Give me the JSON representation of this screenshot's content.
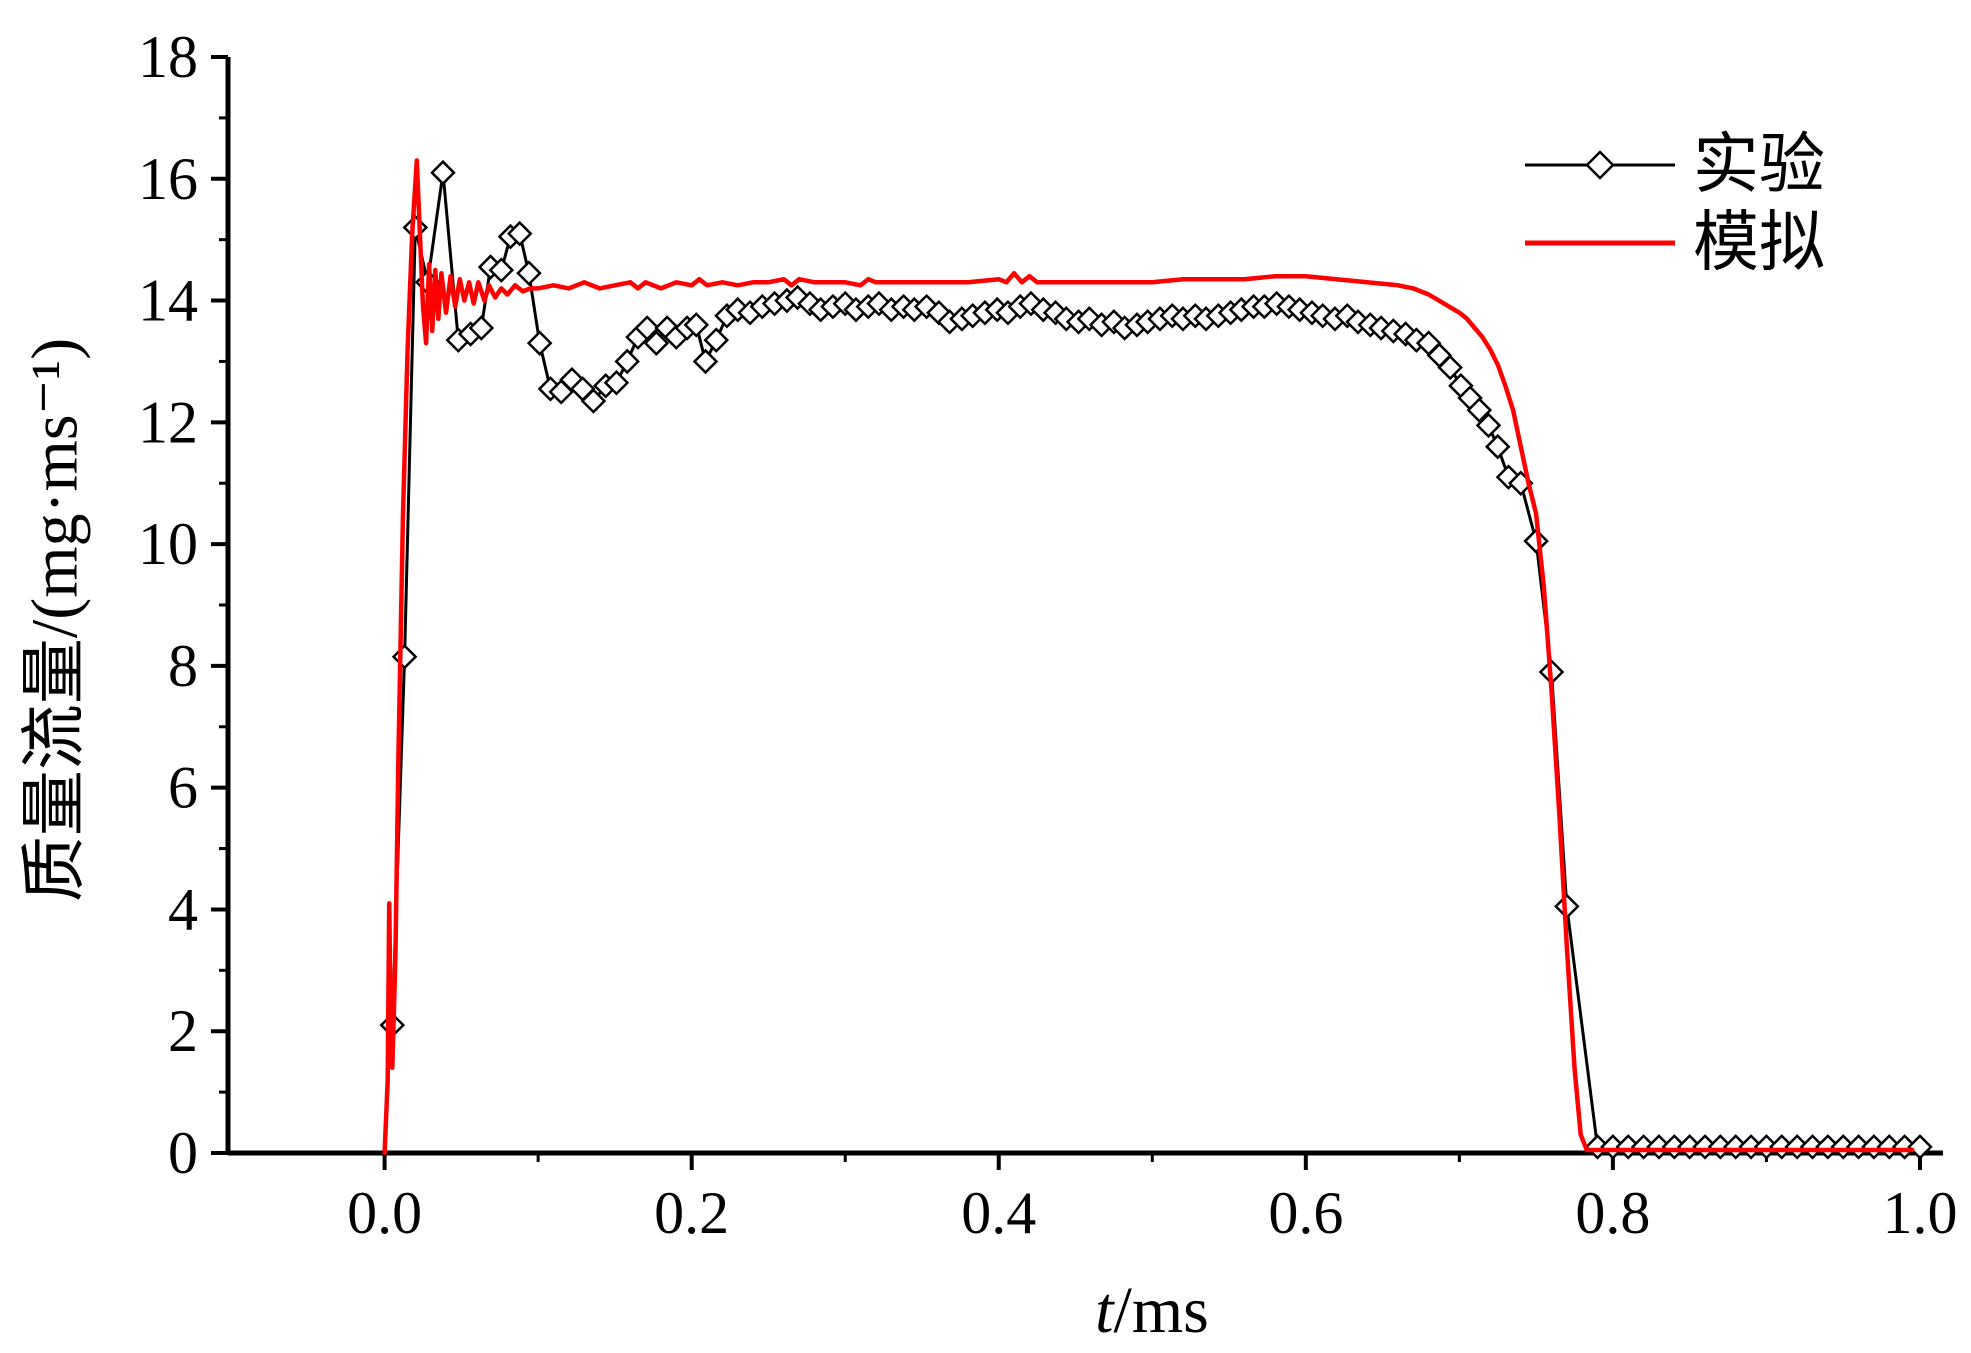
{
  "chart_data": {
    "type": "line",
    "title": "",
    "xlabel_italic": "t",
    "xlabel_rest": "/ms",
    "ylabel": "质量流量/(mg·ms⁻¹)",
    "xlim": [
      -0.102,
      1.015
    ],
    "ylim": [
      0,
      18
    ],
    "xtick_values": [
      0.0,
      0.2,
      0.4,
      0.6,
      0.8,
      1.0
    ],
    "xtick_labels": [
      "0.0",
      "0.2",
      "0.4",
      "0.6",
      "0.8",
      "1.0"
    ],
    "xtick_minor": [
      0.1,
      0.3,
      0.5,
      0.7,
      0.9
    ],
    "ytick_values": [
      0,
      2,
      4,
      6,
      8,
      10,
      12,
      14,
      16,
      18
    ],
    "ytick_labels": [
      "0",
      "2",
      "4",
      "6",
      "8",
      "10",
      "12",
      "14",
      "16",
      "18"
    ],
    "ytick_minor": [
      1,
      3,
      5,
      7,
      9,
      11,
      13,
      15,
      17
    ],
    "grid": false,
    "background": "#ffffff",
    "axis_color": "#000000",
    "legend_position": "top-right",
    "series": [
      {
        "name": "实验",
        "color": "#000000",
        "marker": "diamond",
        "points": [
          [
            0.005,
            2.1
          ],
          [
            0.013,
            8.15
          ],
          [
            0.02,
            15.2
          ],
          [
            0.028,
            14.3
          ],
          [
            0.038,
            16.1
          ],
          [
            0.048,
            13.35
          ],
          [
            0.056,
            13.45
          ],
          [
            0.063,
            13.55
          ],
          [
            0.069,
            14.55
          ],
          [
            0.076,
            14.5
          ],
          [
            0.082,
            15.05
          ],
          [
            0.088,
            15.1
          ],
          [
            0.094,
            14.45
          ],
          [
            0.101,
            13.3
          ],
          [
            0.108,
            12.55
          ],
          [
            0.115,
            12.5
          ],
          [
            0.122,
            12.7
          ],
          [
            0.129,
            12.55
          ],
          [
            0.136,
            12.35
          ],
          [
            0.144,
            12.6
          ],
          [
            0.151,
            12.65
          ],
          [
            0.158,
            13.0
          ],
          [
            0.165,
            13.4
          ],
          [
            0.171,
            13.55
          ],
          [
            0.177,
            13.3
          ],
          [
            0.184,
            13.55
          ],
          [
            0.19,
            13.4
          ],
          [
            0.197,
            13.55
          ],
          [
            0.203,
            13.6
          ],
          [
            0.209,
            13.0
          ],
          [
            0.216,
            13.35
          ],
          [
            0.223,
            13.75
          ],
          [
            0.23,
            13.85
          ],
          [
            0.238,
            13.8
          ],
          [
            0.246,
            13.9
          ],
          [
            0.254,
            13.95
          ],
          [
            0.262,
            14.0
          ],
          [
            0.269,
            14.05
          ],
          [
            0.277,
            13.95
          ],
          [
            0.284,
            13.85
          ],
          [
            0.292,
            13.9
          ],
          [
            0.3,
            13.95
          ],
          [
            0.307,
            13.85
          ],
          [
            0.315,
            13.9
          ],
          [
            0.322,
            13.95
          ],
          [
            0.33,
            13.85
          ],
          [
            0.338,
            13.9
          ],
          [
            0.345,
            13.85
          ],
          [
            0.353,
            13.9
          ],
          [
            0.361,
            13.8
          ],
          [
            0.368,
            13.65
          ],
          [
            0.376,
            13.7
          ],
          [
            0.383,
            13.75
          ],
          [
            0.391,
            13.8
          ],
          [
            0.399,
            13.85
          ],
          [
            0.406,
            13.8
          ],
          [
            0.414,
            13.9
          ],
          [
            0.421,
            13.95
          ],
          [
            0.429,
            13.85
          ],
          [
            0.437,
            13.8
          ],
          [
            0.444,
            13.7
          ],
          [
            0.452,
            13.65
          ],
          [
            0.459,
            13.7
          ],
          [
            0.467,
            13.6
          ],
          [
            0.475,
            13.65
          ],
          [
            0.482,
            13.55
          ],
          [
            0.49,
            13.6
          ],
          [
            0.497,
            13.65
          ],
          [
            0.505,
            13.7
          ],
          [
            0.513,
            13.75
          ],
          [
            0.52,
            13.7
          ],
          [
            0.528,
            13.75
          ],
          [
            0.535,
            13.7
          ],
          [
            0.543,
            13.75
          ],
          [
            0.551,
            13.8
          ],
          [
            0.558,
            13.85
          ],
          [
            0.566,
            13.9
          ],
          [
            0.573,
            13.9
          ],
          [
            0.581,
            13.95
          ],
          [
            0.589,
            13.9
          ],
          [
            0.596,
            13.85
          ],
          [
            0.604,
            13.8
          ],
          [
            0.611,
            13.75
          ],
          [
            0.619,
            13.7
          ],
          [
            0.627,
            13.75
          ],
          [
            0.634,
            13.65
          ],
          [
            0.642,
            13.6
          ],
          [
            0.649,
            13.55
          ],
          [
            0.657,
            13.5
          ],
          [
            0.665,
            13.45
          ],
          [
            0.672,
            13.35
          ],
          [
            0.68,
            13.3
          ],
          [
            0.687,
            13.1
          ],
          [
            0.694,
            12.9
          ],
          [
            0.701,
            12.6
          ],
          [
            0.707,
            12.4
          ],
          [
            0.713,
            12.2
          ],
          [
            0.719,
            11.95
          ],
          [
            0.725,
            11.6
          ],
          [
            0.732,
            11.1
          ],
          [
            0.74,
            11.0
          ],
          [
            0.75,
            10.05
          ],
          [
            0.76,
            7.9
          ],
          [
            0.77,
            4.05
          ],
          [
            0.79,
            0.1
          ],
          [
            0.8,
            0.1
          ],
          [
            0.81,
            0.1
          ],
          [
            0.82,
            0.1
          ],
          [
            0.83,
            0.1
          ],
          [
            0.84,
            0.1
          ],
          [
            0.85,
            0.1
          ],
          [
            0.86,
            0.1
          ],
          [
            0.87,
            0.1
          ],
          [
            0.88,
            0.1
          ],
          [
            0.89,
            0.1
          ],
          [
            0.9,
            0.1
          ],
          [
            0.91,
            0.1
          ],
          [
            0.92,
            0.1
          ],
          [
            0.93,
            0.1
          ],
          [
            0.94,
            0.1
          ],
          [
            0.95,
            0.1
          ],
          [
            0.96,
            0.1
          ],
          [
            0.97,
            0.1
          ],
          [
            0.98,
            0.1
          ],
          [
            0.99,
            0.1
          ],
          [
            1.0,
            0.1
          ]
        ]
      },
      {
        "name": "模拟",
        "color": "#ff0000",
        "marker": "none",
        "points": [
          [
            0.0,
            0
          ],
          [
            0.002,
            1.2
          ],
          [
            0.003,
            4.1
          ],
          [
            0.004,
            2.2
          ],
          [
            0.005,
            1.4
          ],
          [
            0.007,
            3.2
          ],
          [
            0.009,
            6.5
          ],
          [
            0.012,
            10.5
          ],
          [
            0.015,
            13.2
          ],
          [
            0.018,
            15.1
          ],
          [
            0.021,
            16.3
          ],
          [
            0.023,
            15.1
          ],
          [
            0.025,
            13.9
          ],
          [
            0.027,
            13.3
          ],
          [
            0.029,
            14.6
          ],
          [
            0.031,
            13.5
          ],
          [
            0.033,
            14.5
          ],
          [
            0.035,
            13.7
          ],
          [
            0.037,
            14.45
          ],
          [
            0.04,
            13.8
          ],
          [
            0.043,
            14.4
          ],
          [
            0.046,
            13.9
          ],
          [
            0.049,
            14.35
          ],
          [
            0.052,
            14.0
          ],
          [
            0.055,
            14.3
          ],
          [
            0.058,
            13.95
          ],
          [
            0.061,
            14.3
          ],
          [
            0.065,
            14.0
          ],
          [
            0.068,
            14.25
          ],
          [
            0.072,
            14.05
          ],
          [
            0.076,
            14.2
          ],
          [
            0.08,
            14.1
          ],
          [
            0.085,
            14.25
          ],
          [
            0.09,
            14.15
          ],
          [
            0.095,
            14.2
          ],
          [
            0.1,
            14.2
          ],
          [
            0.11,
            14.25
          ],
          [
            0.12,
            14.2
          ],
          [
            0.13,
            14.3
          ],
          [
            0.14,
            14.2
          ],
          [
            0.15,
            14.25
          ],
          [
            0.16,
            14.3
          ],
          [
            0.165,
            14.2
          ],
          [
            0.17,
            14.3
          ],
          [
            0.18,
            14.2
          ],
          [
            0.19,
            14.3
          ],
          [
            0.2,
            14.25
          ],
          [
            0.205,
            14.35
          ],
          [
            0.21,
            14.25
          ],
          [
            0.22,
            14.3
          ],
          [
            0.23,
            14.25
          ],
          [
            0.24,
            14.3
          ],
          [
            0.25,
            14.3
          ],
          [
            0.26,
            14.35
          ],
          [
            0.265,
            14.25
          ],
          [
            0.27,
            14.35
          ],
          [
            0.28,
            14.3
          ],
          [
            0.29,
            14.3
          ],
          [
            0.3,
            14.3
          ],
          [
            0.31,
            14.25
          ],
          [
            0.315,
            14.35
          ],
          [
            0.32,
            14.3
          ],
          [
            0.34,
            14.3
          ],
          [
            0.36,
            14.3
          ],
          [
            0.38,
            14.3
          ],
          [
            0.4,
            14.35
          ],
          [
            0.405,
            14.3
          ],
          [
            0.41,
            14.45
          ],
          [
            0.415,
            14.3
          ],
          [
            0.42,
            14.4
          ],
          [
            0.425,
            14.3
          ],
          [
            0.44,
            14.3
          ],
          [
            0.46,
            14.3
          ],
          [
            0.48,
            14.3
          ],
          [
            0.5,
            14.3
          ],
          [
            0.52,
            14.35
          ],
          [
            0.54,
            14.35
          ],
          [
            0.56,
            14.35
          ],
          [
            0.58,
            14.4
          ],
          [
            0.6,
            14.4
          ],
          [
            0.62,
            14.35
          ],
          [
            0.64,
            14.3
          ],
          [
            0.66,
            14.25
          ],
          [
            0.67,
            14.2
          ],
          [
            0.68,
            14.1
          ],
          [
            0.69,
            13.95
          ],
          [
            0.7,
            13.8
          ],
          [
            0.705,
            13.7
          ],
          [
            0.71,
            13.55
          ],
          [
            0.715,
            13.4
          ],
          [
            0.72,
            13.2
          ],
          [
            0.725,
            12.95
          ],
          [
            0.73,
            12.6
          ],
          [
            0.735,
            12.2
          ],
          [
            0.74,
            11.6
          ],
          [
            0.745,
            11.0
          ],
          [
            0.75,
            10.5
          ],
          [
            0.755,
            9.3
          ],
          [
            0.76,
            7.6
          ],
          [
            0.765,
            5.6
          ],
          [
            0.77,
            3.4
          ],
          [
            0.775,
            1.4
          ],
          [
            0.779,
            0.3
          ],
          [
            0.783,
            0.05
          ],
          [
            0.85,
            0.05
          ],
          [
            0.9,
            0.05
          ],
          [
            0.95,
            0.05
          ],
          [
            0.995,
            0.05
          ]
        ]
      }
    ]
  }
}
